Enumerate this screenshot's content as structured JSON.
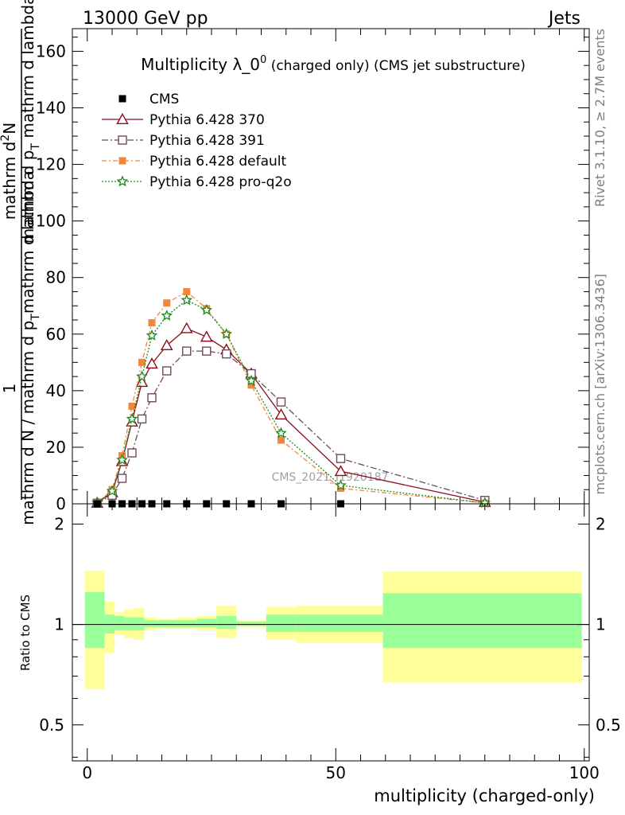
{
  "header": {
    "left": "13000 GeV pp",
    "right": "Jets"
  },
  "side": {
    "rivet": "Rivet 3.1.10, ≥ 2.7M events",
    "mcplots": "mcplots.cern.ch [arXiv:1306.3436]"
  },
  "watermark": "CMS_2021_I1920187",
  "colors": {
    "cms": "#000000",
    "p370": "#8b0d1f",
    "p391": "#6e4a5e",
    "pdefault": "#f4863a",
    "pq2o": "#1a8a1a",
    "band_inner": "#99ff99",
    "band_outer": "#ffff99"
  },
  "chart_data": [
    {
      "type": "line",
      "title_main": "Multiplicity λ_0",
      "title_sup": "0",
      "title_rest": " (charged only) (CMS jet substructure)",
      "ylabel_top": "1",
      "ylabel_bottom": "mathrm d N / mathrm d p",
      "ylabel_bottom_sub": "T",
      "ylabel_bottom_rest": "mathrm d lambda",
      "ylabel_num": "mathrm d",
      "ylabel_num_sup": "2",
      "ylabel_num_rest": "N",
      "ylabel_den": "mathrm d p",
      "ylabel_den_sub": "T",
      "ylabel_den_rest": " mathrm d lambda",
      "ylim": [
        0,
        168
      ],
      "yticks": [
        "0",
        "20",
        "40",
        "60",
        "80",
        "100",
        "120",
        "140",
        "160"
      ],
      "legend_position": "top-left",
      "series": [
        {
          "name": "CMS",
          "key": "cms",
          "marker": "square",
          "x": [
            2,
            5,
            7,
            9,
            11,
            13,
            16,
            20,
            24,
            28,
            33,
            39,
            51
          ],
          "y": [
            0,
            0,
            0,
            0,
            0,
            0,
            0,
            0,
            0,
            0,
            0,
            0,
            0
          ]
        },
        {
          "name": "Pythia 6.428 370",
          "key": "p370",
          "marker": "triangle",
          "dash": "",
          "x": [
            2,
            5,
            7,
            9,
            11,
            13,
            16,
            20,
            24,
            28,
            33,
            39,
            51,
            80
          ],
          "y": [
            0.3,
            4,
            15,
            29,
            43,
            49.5,
            56,
            62,
            59,
            54.5,
            46,
            31.5,
            11.5,
            0.6
          ]
        },
        {
          "name": "Pythia 6.428 391",
          "key": "p391",
          "marker": "square-open",
          "dash": "8,3,2,3",
          "x": [
            2,
            5,
            7,
            9,
            11,
            13,
            16,
            20,
            24,
            28,
            33,
            39,
            51,
            80
          ],
          "y": [
            0.2,
            3,
            9,
            18,
            30,
            37.5,
            47,
            54,
            54,
            53,
            46,
            36,
            16,
            1.2
          ]
        },
        {
          "name": "Pythia 6.428 default",
          "key": "pdefault",
          "marker": "square-filled",
          "dash": "6,3,2,3",
          "x": [
            2,
            5,
            7,
            9,
            11,
            13,
            16,
            20,
            24,
            28,
            33,
            39,
            51,
            80
          ],
          "y": [
            0.3,
            5,
            17,
            34.5,
            50,
            64,
            71,
            75,
            69,
            60,
            42,
            22.5,
            5.5,
            0.3
          ]
        },
        {
          "name": "Pythia 6.428 pro-q2o",
          "key": "pq2o",
          "marker": "star",
          "dash": "2,2",
          "x": [
            2,
            5,
            7,
            9,
            11,
            13,
            16,
            20,
            24,
            28,
            33,
            39,
            51,
            80
          ],
          "y": [
            0.3,
            4.5,
            15.5,
            30,
            45,
            59.5,
            66.5,
            72,
            68.5,
            60,
            43.5,
            25,
            6.5,
            0.3
          ]
        }
      ]
    },
    {
      "type": "area",
      "ylabel": "Ratio to CMS",
      "xlabel": "multiplicity (charged-only)",
      "xlim": [
        -3,
        101
      ],
      "ylim": [
        0.39,
        2.3
      ],
      "xticks": [
        "0",
        "50",
        "100"
      ],
      "yticks": [
        "0.5",
        "1",
        "2"
      ],
      "reference": 1,
      "bands": [
        {
          "x0": -0.5,
          "x1": 3.5,
          "inner": [
            0.85,
            1.25
          ],
          "outer": [
            0.64,
            1.45
          ]
        },
        {
          "x0": 3.5,
          "x1": 5.5,
          "inner": [
            0.94,
            1.07
          ],
          "outer": [
            0.82,
            1.17
          ]
        },
        {
          "x0": 5.5,
          "x1": 7.5,
          "inner": [
            0.96,
            1.06
          ],
          "outer": [
            0.93,
            1.09
          ]
        },
        {
          "x0": 7.5,
          "x1": 9.5,
          "inner": [
            0.96,
            1.05
          ],
          "outer": [
            0.91,
            1.11
          ]
        },
        {
          "x0": 9.5,
          "x1": 11.5,
          "inner": [
            0.96,
            1.05
          ],
          "outer": [
            0.9,
            1.12
          ]
        },
        {
          "x0": 11.5,
          "x1": 14,
          "inner": [
            0.98,
            1.03
          ],
          "outer": [
            0.96,
            1.05
          ]
        },
        {
          "x0": 14,
          "x1": 18,
          "inner": [
            0.98,
            1.03
          ],
          "outer": [
            0.97,
            1.04
          ]
        },
        {
          "x0": 18,
          "x1": 22,
          "inner": [
            0.98,
            1.03
          ],
          "outer": [
            0.97,
            1.05
          ]
        },
        {
          "x0": 22,
          "x1": 26,
          "inner": [
            0.98,
            1.04
          ],
          "outer": [
            0.96,
            1.06
          ]
        },
        {
          "x0": 26,
          "x1": 30,
          "inner": [
            0.97,
            1.06
          ],
          "outer": [
            0.91,
            1.14
          ]
        },
        {
          "x0": 30,
          "x1": 36,
          "inner": [
            0.99,
            1.02
          ],
          "outer": [
            0.98,
            1.03
          ]
        },
        {
          "x0": 36,
          "x1": 42,
          "inner": [
            0.95,
            1.07
          ],
          "outer": [
            0.9,
            1.13
          ]
        },
        {
          "x0": 42,
          "x1": 59.5,
          "inner": [
            0.95,
            1.07
          ],
          "outer": [
            0.88,
            1.14
          ]
        },
        {
          "x0": 59.5,
          "x1": 99.5,
          "inner": [
            0.85,
            1.24
          ],
          "outer": [
            0.67,
            1.44
          ]
        }
      ]
    }
  ]
}
